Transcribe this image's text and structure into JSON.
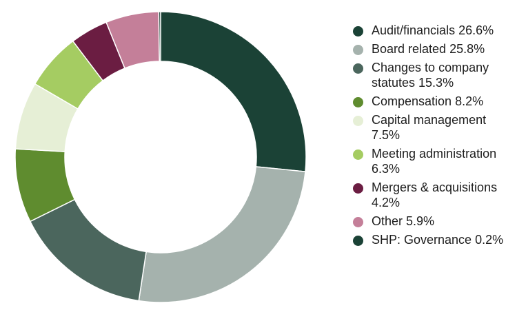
{
  "chart_data": {
    "type": "pie",
    "donut": true,
    "legend_position": "right",
    "series": [
      {
        "name": "Audit/financials",
        "value": 26.6,
        "label": "Audit/financials 26.6%",
        "color": "#1b4236"
      },
      {
        "name": "Board related",
        "value": 25.8,
        "label": "Board related 25.8%",
        "color": "#a5b2ad"
      },
      {
        "name": "Changes to company statutes",
        "value": 15.3,
        "label": "Changes to company statutes 15.3%",
        "color": "#4b665d"
      },
      {
        "name": "Compensation",
        "value": 8.2,
        "label": "Compensation 8.2%",
        "color": "#5f8c2f"
      },
      {
        "name": "Capital management",
        "value": 7.5,
        "label": "Capital management 7.5%",
        "color": "#e6efd6"
      },
      {
        "name": "Meeting administration",
        "value": 6.3,
        "label": "Meeting administration 6.3%",
        "color": "#a5cc62"
      },
      {
        "name": "Mergers & acquisitions",
        "value": 4.2,
        "label": "Mergers & acquisitions 4.2%",
        "color": "#6b1d42"
      },
      {
        "name": "Other",
        "value": 5.9,
        "label": "Other 5.9%",
        "color": "#c47f99"
      },
      {
        "name": "SHP: Governance",
        "value": 0.2,
        "label": "SHP: Governance 0.2%",
        "color": "#1b4236"
      }
    ]
  }
}
